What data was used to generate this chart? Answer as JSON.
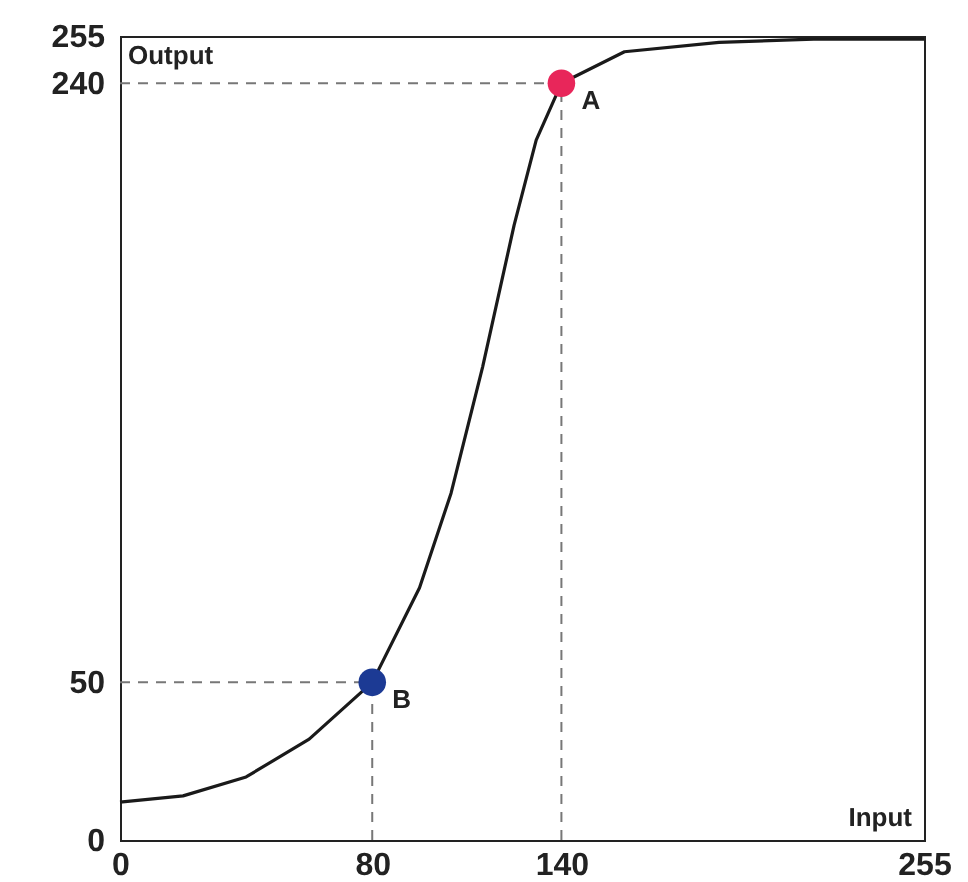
{
  "chart_data": {
    "type": "line",
    "xlabel": "Input",
    "ylabel": "Output",
    "xlim": [
      0,
      255
    ],
    "ylim": [
      0,
      255
    ],
    "xticks": [
      0,
      80,
      140,
      255
    ],
    "yticks": [
      0,
      50,
      240,
      255
    ],
    "series": [
      {
        "color": "#1a1a1a",
        "line_style": "solid",
        "x": [
          0,
          20,
          40,
          60,
          80,
          95,
          105,
          115,
          125,
          132,
          140,
          160,
          190,
          220,
          255
        ],
        "values": [
          12,
          14,
          20,
          32,
          50,
          80,
          110,
          150,
          195,
          222,
          240,
          250,
          253,
          254,
          254
        ]
      },
      {
        "type": "scatter",
        "name": "A",
        "color": "#e8265a",
        "marker": "circle",
        "x": [
          140
        ],
        "values": [
          240
        ]
      },
      {
        "type": "scatter",
        "name": "B",
        "color": "#1c3a94",
        "marker": "circle",
        "x": [
          80
        ],
        "values": [
          50
        ]
      }
    ]
  }
}
